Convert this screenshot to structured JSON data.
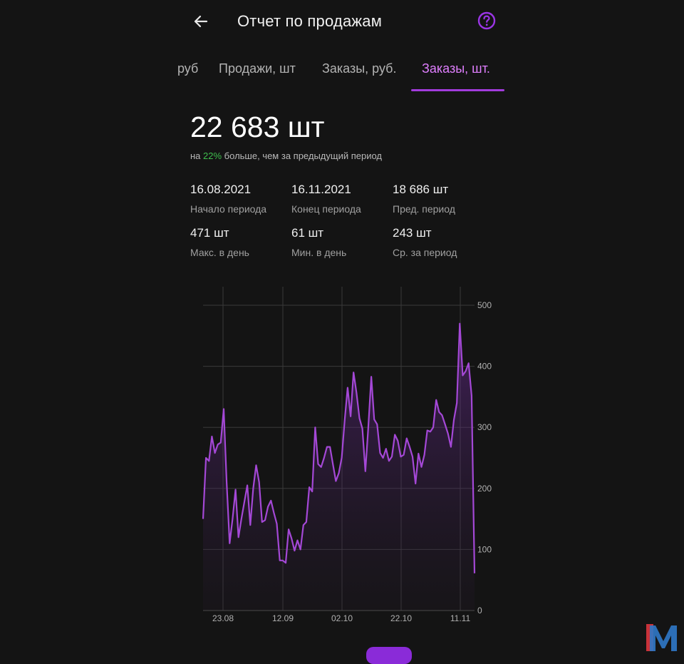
{
  "header": {
    "title": "Отчет по продажам",
    "back_icon": "arrow-left-icon",
    "help_icon": "question-circle-icon"
  },
  "tabs": [
    {
      "label": "руб",
      "active": false
    },
    {
      "label": "Продажи, шт",
      "active": false
    },
    {
      "label": "Заказы, руб.",
      "active": false
    },
    {
      "label": "Заказы, шт.",
      "active": true
    }
  ],
  "summary": {
    "total": "22 683 шт",
    "compare_prefix": "на ",
    "compare_pct": "22%",
    "compare_suffix": " больше, чем за предыдущий период"
  },
  "stats": [
    {
      "value": "16.08.2021",
      "label": "Начало периода"
    },
    {
      "value": "16.11.2021",
      "label": "Конец периода"
    },
    {
      "value": "18 686 шт",
      "label": "Пред. период"
    },
    {
      "value": "471 шт",
      "label": "Макс. в день"
    },
    {
      "value": "61 шт",
      "label": "Мин. в день"
    },
    {
      "value": "243 шт",
      "label": "Ср. за период"
    }
  ],
  "colors": {
    "accent": "#a23bdc",
    "line": "#a448d6",
    "positive": "#3fbf4e",
    "background": "#141414"
  },
  "chart_data": {
    "type": "area",
    "x_tick_labels": [
      "23.08",
      "12.09",
      "02.10",
      "22.10",
      "11.11"
    ],
    "y_ticks": [
      0,
      100,
      200,
      300,
      400,
      500
    ],
    "ylim": [
      0,
      500
    ],
    "grid": true,
    "y_axis_side": "right",
    "series": [
      {
        "values": [
          150,
          250,
          245,
          285,
          258,
          272,
          275,
          330,
          210,
          110,
          150,
          198,
          120,
          150,
          178,
          205,
          140,
          200,
          238,
          210,
          145,
          148,
          170,
          180,
          160,
          142,
          82,
          82,
          78,
          133,
          118,
          98,
          115,
          100,
          140,
          145,
          202,
          195,
          300,
          240,
          235,
          250,
          268,
          268,
          240,
          212,
          225,
          250,
          312,
          365,
          318,
          390,
          357,
          315,
          298,
          228,
          300,
          383,
          313,
          305,
          258,
          250,
          265,
          245,
          252,
          288,
          278,
          252,
          255,
          282,
          268,
          252,
          208,
          257,
          235,
          255,
          295,
          293,
          300,
          345,
          325,
          320,
          305,
          290,
          268,
          312,
          340,
          470,
          385,
          392,
          405,
          352,
          61
        ]
      }
    ]
  }
}
